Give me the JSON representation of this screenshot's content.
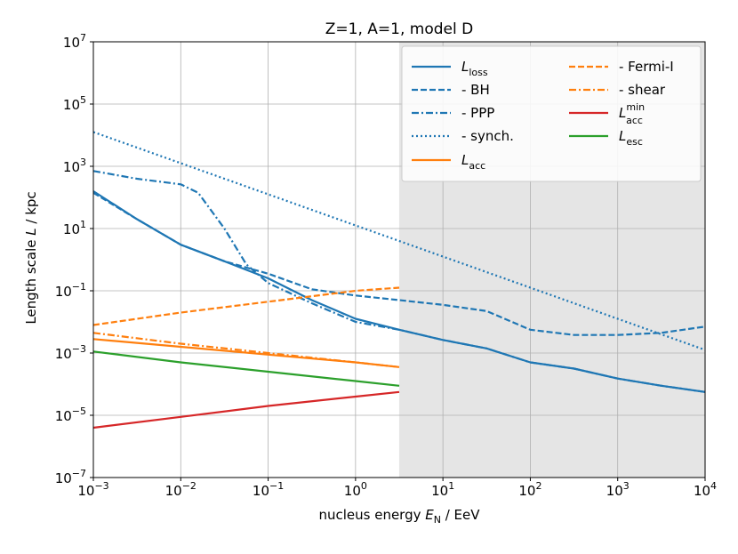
{
  "chart_data": {
    "type": "line",
    "title": "Z=1, A=1, model D",
    "xlabel": "nucleus energy E_N / EeV",
    "ylabel": "Length scale L / kpc",
    "xscale": "log",
    "yscale": "log",
    "xlim_exp": [
      -3,
      4
    ],
    "ylim_exp": [
      -7,
      7
    ],
    "x_ticks_exp": [
      -3,
      -2,
      -1,
      0,
      1,
      2,
      3,
      4
    ],
    "y_ticks_exp": [
      -7,
      -5,
      -3,
      -1,
      1,
      3,
      5,
      7
    ],
    "grid": true,
    "legend_position": "top-right",
    "shaded_region": {
      "x_from": 3.16,
      "x_to": 10000,
      "color": "#e5e5e5"
    },
    "series": [
      {
        "name": "L_loss",
        "legend": "loss",
        "color": "#1f77b4",
        "dash": "solid",
        "points": [
          [
            -3,
            2.2
          ],
          [
            -2.5,
            1.3
          ],
          [
            -2,
            0.48
          ],
          [
            -1.5,
            -0.05
          ],
          [
            -1,
            -0.6
          ],
          [
            -0.5,
            -1.3
          ],
          [
            0,
            -1.9
          ],
          [
            0.5,
            -2.25
          ],
          [
            1,
            -2.58
          ],
          [
            1.5,
            -2.85
          ],
          [
            2,
            -3.3
          ],
          [
            2.5,
            -3.5
          ],
          [
            3,
            -3.82
          ],
          [
            3.5,
            -4.05
          ],
          [
            4,
            -4.25
          ]
        ]
      },
      {
        "name": "- BH",
        "legend": "   - BH",
        "color": "#1f77b4",
        "dash": "dashed",
        "points": [
          [
            -3,
            2.15
          ],
          [
            -2.5,
            1.3
          ],
          [
            -2,
            0.48
          ],
          [
            -1.5,
            -0.05
          ],
          [
            -1,
            -0.45
          ],
          [
            -0.5,
            -0.95
          ],
          [
            0,
            -1.15
          ],
          [
            0.5,
            -1.3
          ],
          [
            1,
            -1.45
          ],
          [
            1.5,
            -1.65
          ],
          [
            2,
            -2.25
          ],
          [
            2.5,
            -2.42
          ],
          [
            3,
            -2.42
          ],
          [
            3.5,
            -2.35
          ],
          [
            4,
            -2.15
          ]
        ]
      },
      {
        "name": "- PPP",
        "legend": "   - PPP",
        "color": "#1f77b4",
        "dash": "dashdot",
        "points": [
          [
            -3,
            2.85
          ],
          [
            -2.5,
            2.6
          ],
          [
            -2,
            2.42
          ],
          [
            -1.8,
            2.15
          ],
          [
            -1.5,
            1.0
          ],
          [
            -1.25,
            -0.15
          ],
          [
            -1,
            -0.75
          ],
          [
            -0.5,
            -1.4
          ],
          [
            0,
            -2.0
          ],
          [
            0.5,
            -2.25
          ],
          [
            1,
            -2.58
          ],
          [
            1.5,
            -2.85
          ],
          [
            2,
            -3.3
          ],
          [
            2.5,
            -3.5
          ],
          [
            3,
            -3.82
          ],
          [
            3.5,
            -4.05
          ],
          [
            4,
            -4.25
          ]
        ]
      },
      {
        "name": "- synch.",
        "legend": "   - synch.",
        "color": "#1f77b4",
        "dash": "dotted",
        "points": [
          [
            -3,
            4.1
          ],
          [
            -2,
            3.1
          ],
          [
            -1,
            2.1
          ],
          [
            0,
            1.1
          ],
          [
            1,
            0.1
          ],
          [
            2,
            -0.9
          ],
          [
            3,
            -1.9
          ],
          [
            4,
            -2.9
          ]
        ]
      },
      {
        "name": "L_acc",
        "legend": "acc",
        "color": "#ff7f0e",
        "dash": "solid",
        "points": [
          [
            -3,
            -2.55
          ],
          [
            -2,
            -2.8
          ],
          [
            -1,
            -3.05
          ],
          [
            0,
            -3.3
          ],
          [
            0.5,
            -3.45
          ]
        ]
      },
      {
        "name": "- Fermi-I",
        "legend": "   - Fermi-I",
        "color": "#ff7f0e",
        "dash": "dashed",
        "points": [
          [
            -3,
            -2.1
          ],
          [
            -2,
            -1.7
          ],
          [
            -1,
            -1.35
          ],
          [
            0,
            -1.0
          ],
          [
            0.5,
            -0.9
          ]
        ]
      },
      {
        "name": "- shear",
        "legend": "   - shear",
        "color": "#ff7f0e",
        "dash": "dashdot",
        "points": [
          [
            -3,
            -2.35
          ],
          [
            -2,
            -2.7
          ],
          [
            -1,
            -3.0
          ],
          [
            0,
            -3.3
          ],
          [
            0.5,
            -3.45
          ]
        ]
      },
      {
        "name": "L_acc^min",
        "legend": "acc",
        "color": "#d62728",
        "dash": "solid",
        "points": [
          [
            -3,
            -5.4
          ],
          [
            -2,
            -5.05
          ],
          [
            -1,
            -4.7
          ],
          [
            0,
            -4.4
          ],
          [
            0.5,
            -4.25
          ]
        ]
      },
      {
        "name": "L_esc",
        "legend": "esc",
        "color": "#2ca02c",
        "dash": "solid",
        "points": [
          [
            -3,
            -2.95
          ],
          [
            -2,
            -3.3
          ],
          [
            -1,
            -3.6
          ],
          [
            0,
            -3.9
          ],
          [
            0.5,
            -4.05
          ]
        ]
      }
    ]
  },
  "labels": {
    "title": "Z=1, A=1, model D",
    "x_prefix": "nucleus energy ",
    "x_sym": "E",
    "x_sub": "N",
    "x_suffix": " / EeV",
    "y_prefix": "Length scale ",
    "y_sym": "L",
    "y_suffix": " / kpc",
    "tick_base": "10",
    "legend_L": "L",
    "legend_min_sup": "min"
  }
}
